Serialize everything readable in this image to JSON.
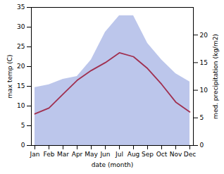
{
  "chart_data": {
    "type": "line",
    "categories": [
      "Jan",
      "Feb",
      "Mar",
      "Apr",
      "May",
      "Jun",
      "Jul",
      "Aug",
      "Sep",
      "Oct",
      "Nov",
      "Dec"
    ],
    "series": [
      {
        "type": "area",
        "color": "#b0bce8",
        "axis": "y2",
        "values": [
          10.5,
          11.0,
          12.0,
          12.5,
          15.5,
          20.5,
          23.5,
          23.5,
          18.5,
          15.5,
          13.0,
          11.5
        ]
      },
      {
        "type": "line",
        "color": "#a03050",
        "values": [
          8.0,
          9.5,
          13.0,
          16.5,
          19.0,
          21.0,
          23.5,
          22.5,
          19.5,
          15.5,
          11.0,
          8.5
        ]
      }
    ],
    "xlabel": "date (month)",
    "ylabel": "max temp (C)",
    "y2label": "med. precipitation (kg/m2)",
    "ylim": [
      0,
      35
    ],
    "yticks": [
      0,
      5,
      10,
      15,
      20,
      25,
      30,
      35
    ],
    "y2lim": [
      0,
      25
    ],
    "y2ticks": [
      0,
      5,
      10,
      15,
      20
    ]
  }
}
